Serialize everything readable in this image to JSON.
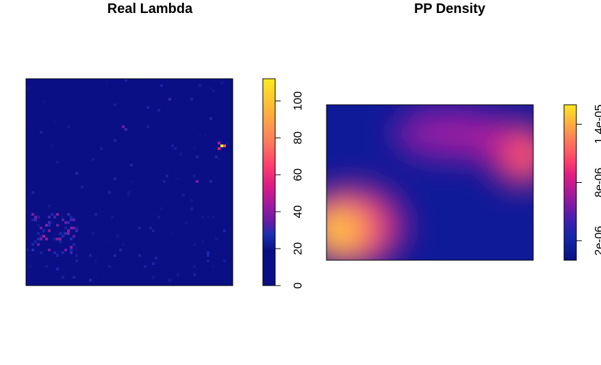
{
  "chart_data": [
    {
      "type": "heatmap",
      "title": "Real Lambda",
      "colorbar": {
        "zlim": [
          0,
          112
        ],
        "ticks": [
          0,
          20,
          40,
          60,
          80,
          100
        ],
        "tick_labels": [
          "0",
          "20",
          "40",
          "60",
          "80",
          "100"
        ]
      },
      "hotspots": [
        {
          "x": 0.95,
          "y": 0.67,
          "value": 112
        },
        {
          "x": 0.96,
          "y": 0.68,
          "value": 70
        },
        {
          "x": 0.94,
          "y": 0.66,
          "value": 55
        },
        {
          "x": 0.94,
          "y": 0.69,
          "value": 45
        },
        {
          "x": 0.08,
          "y": 0.24,
          "value": 45
        },
        {
          "x": 0.1,
          "y": 0.22,
          "value": 40
        },
        {
          "x": 0.11,
          "y": 0.27,
          "value": 38
        },
        {
          "x": 0.07,
          "y": 0.28,
          "value": 35
        },
        {
          "x": 0.14,
          "y": 0.33,
          "value": 30
        },
        {
          "x": 0.2,
          "y": 0.31,
          "value": 28
        },
        {
          "x": 0.05,
          "y": 0.21,
          "value": 25
        },
        {
          "x": 0.04,
          "y": 0.17,
          "value": 20
        },
        {
          "x": 0.47,
          "y": 0.77,
          "value": 35
        },
        {
          "x": 0.48,
          "y": 0.76,
          "value": 30
        },
        {
          "x": 0.69,
          "y": 0.9,
          "value": 30
        },
        {
          "x": 0.64,
          "y": 0.85,
          "value": 25
        },
        {
          "x": 0.83,
          "y": 0.5,
          "value": 38
        },
        {
          "x": 0.9,
          "y": 0.5,
          "value": 25
        },
        {
          "x": 0.92,
          "y": 0.62,
          "value": 25
        }
      ]
    },
    {
      "type": "heatmap",
      "title": "PP Density",
      "colorbar": {
        "zlim": [
          0,
          1.6e-05
        ],
        "ticks": [
          2e-06,
          8e-06,
          1.4e-05
        ],
        "tick_labels": [
          "2e-06",
          "8e-06",
          "1.4e-05"
        ]
      },
      "density_peaks": [
        {
          "x": 0.05,
          "y": 0.2,
          "value": 1.55e-05
        },
        {
          "x": 0.97,
          "y": 0.67,
          "value": 9e-06
        },
        {
          "x": 0.55,
          "y": 0.85,
          "value": 5.5e-06
        }
      ]
    }
  ]
}
